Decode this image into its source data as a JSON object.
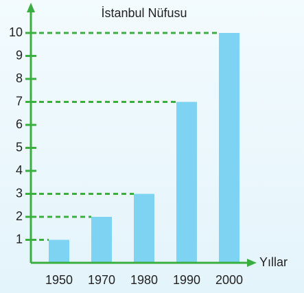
{
  "chart_data": {
    "type": "bar",
    "title": "İstanbul Nüfusu",
    "x_label": "Yıllar",
    "categories": [
      "1950",
      "1970",
      "1980",
      "1990",
      "2000"
    ],
    "values": [
      1,
      2,
      3,
      7,
      10
    ],
    "color": "#7fd3f2",
    "axis_color": "#3aae3f",
    "ylim": [
      0,
      10
    ],
    "yticks": [
      1,
      2,
      3,
      4,
      5,
      6,
      7,
      8,
      9,
      10
    ],
    "guide_lines": true
  }
}
